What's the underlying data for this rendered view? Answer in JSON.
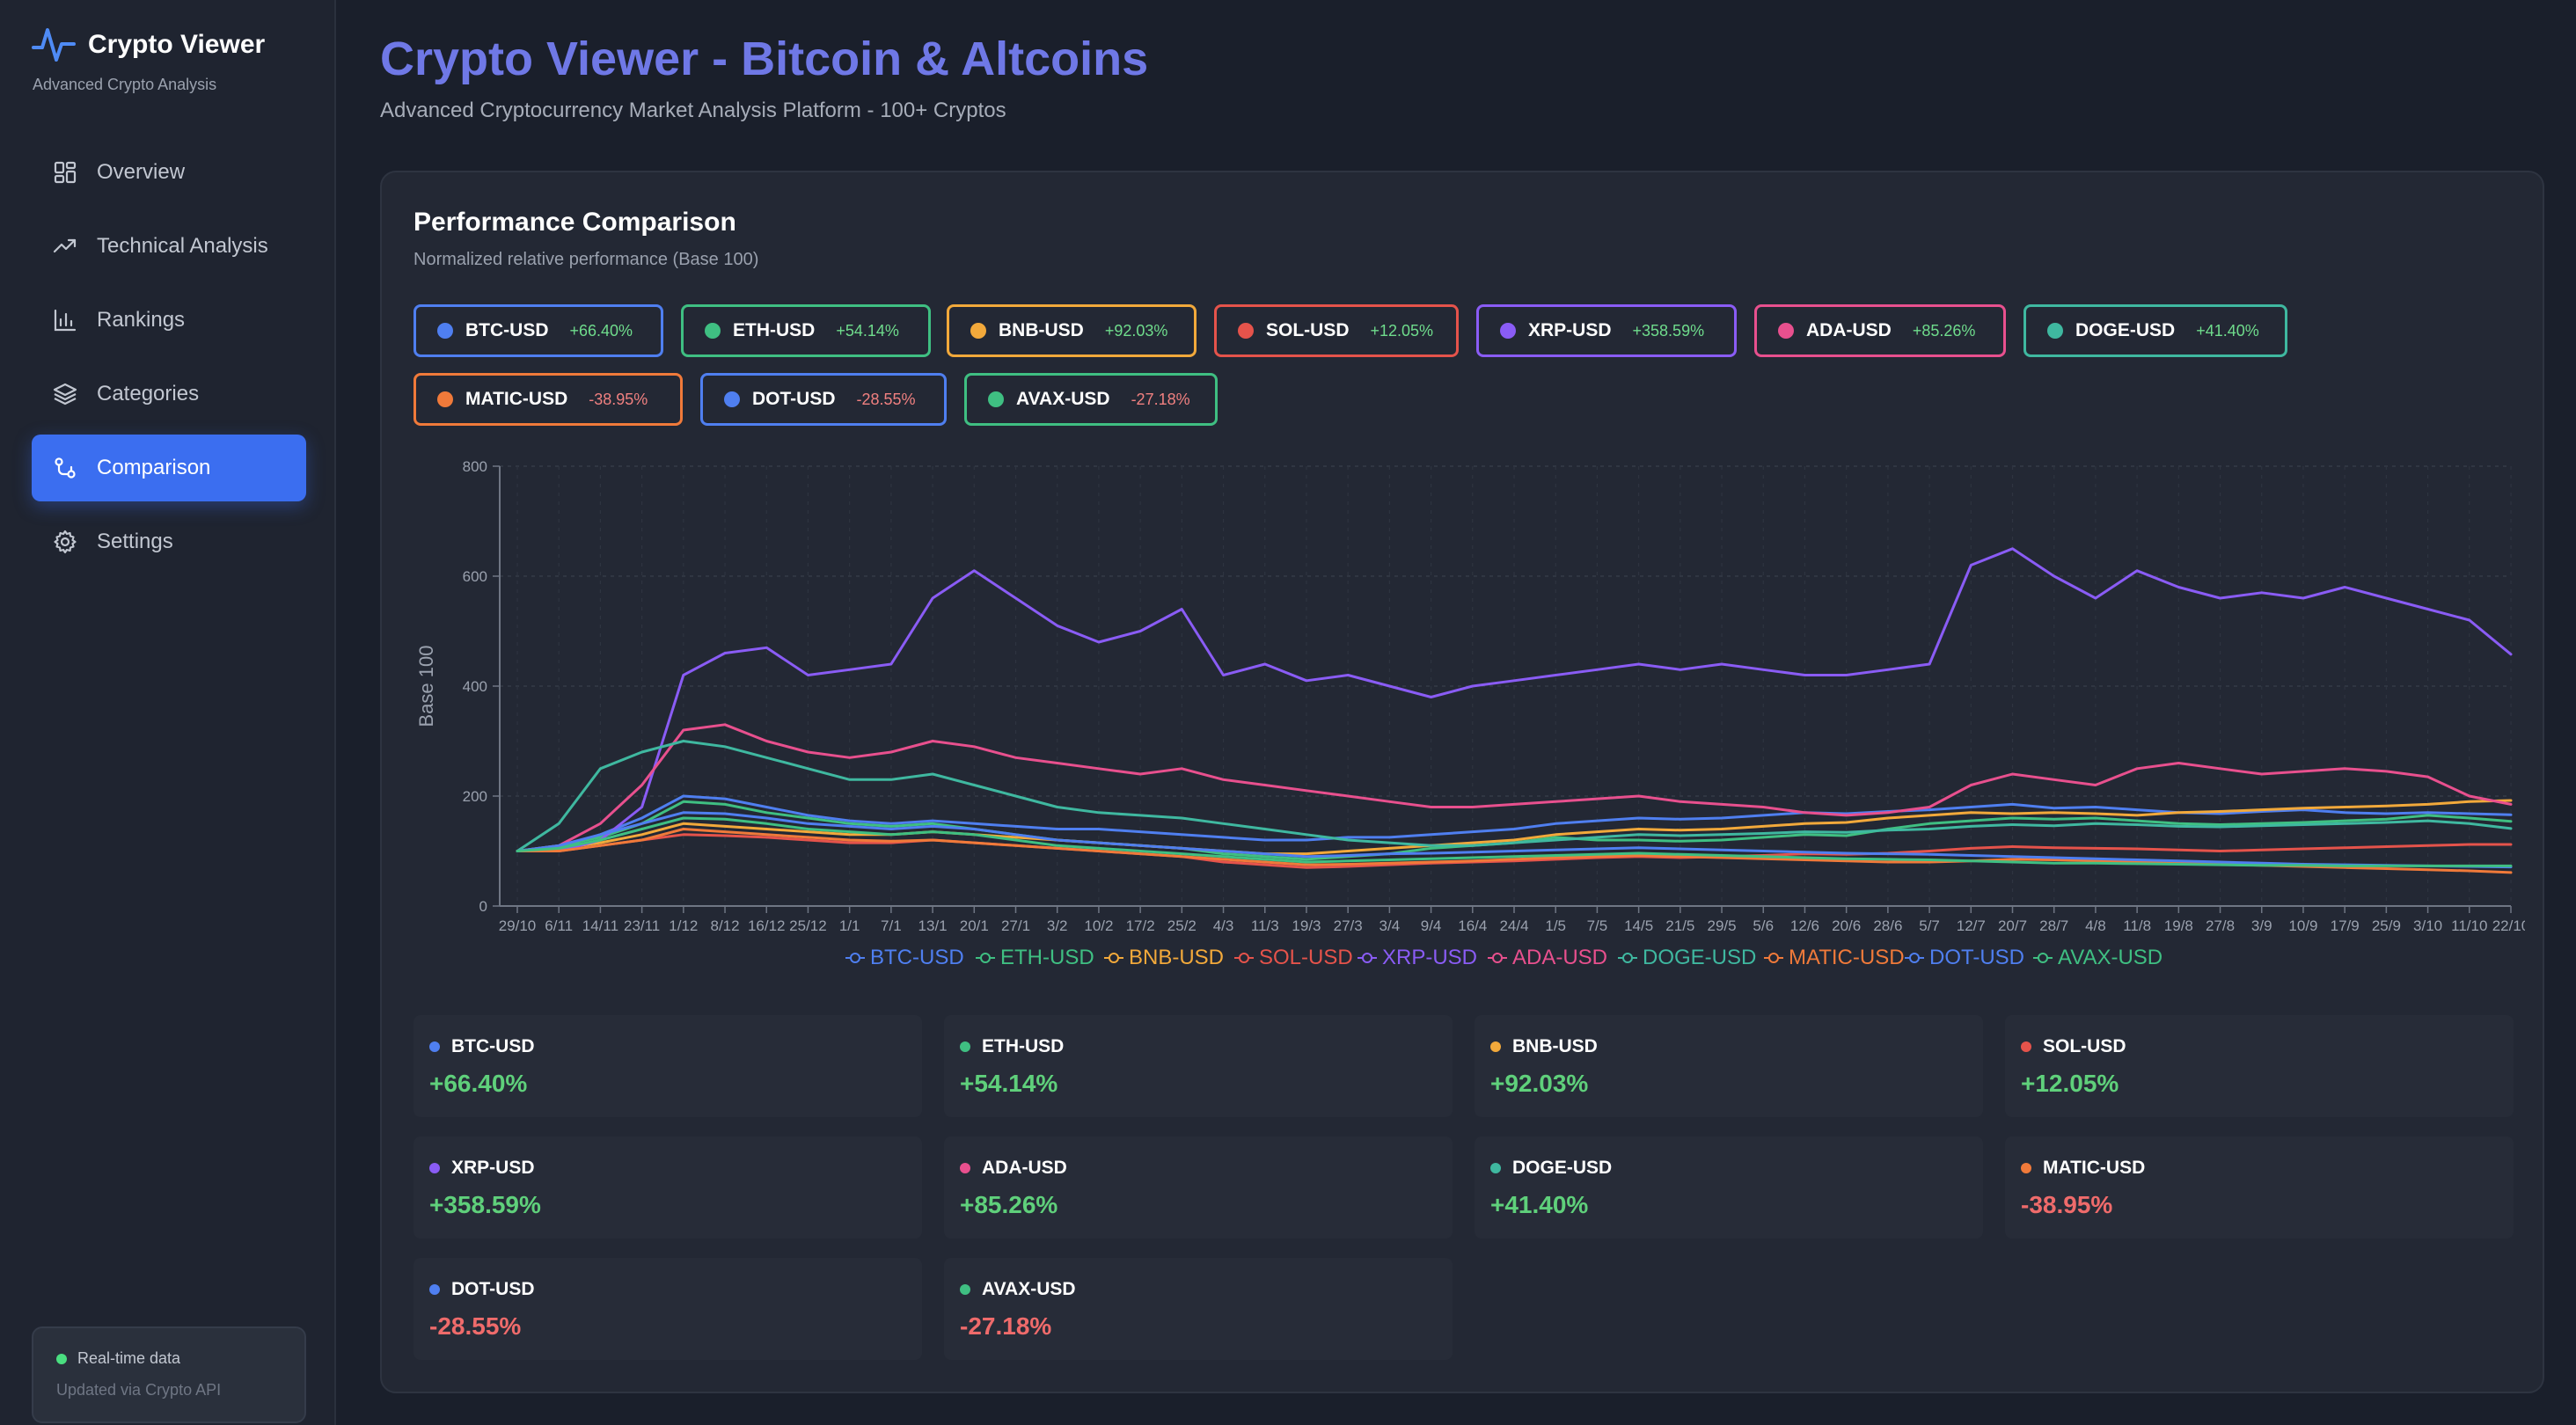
{
  "brand": {
    "title": "Crypto Viewer",
    "subtitle": "Advanced Crypto Analysis"
  },
  "nav": [
    {
      "label": "Overview",
      "icon": "grid-icon",
      "active": false
    },
    {
      "label": "Technical Analysis",
      "icon": "trending-up-icon",
      "active": false
    },
    {
      "label": "Rankings",
      "icon": "bar-chart-icon",
      "active": false
    },
    {
      "label": "Categories",
      "icon": "layers-icon",
      "active": false
    },
    {
      "label": "Comparison",
      "icon": "compare-icon",
      "active": true
    },
    {
      "label": "Settings",
      "icon": "gear-icon",
      "active": false
    }
  ],
  "status": {
    "line1": "Real-time data",
    "line2": "Updated via Crypto API"
  },
  "header": {
    "title": "Crypto Viewer - Bitcoin & Altcoins",
    "subtitle": "Advanced Cryptocurrency Market Analysis Platform - 100+ Cryptos"
  },
  "panel": {
    "title": "Performance Comparison",
    "subtitle": "Normalized relative performance (Base 100)"
  },
  "assets": [
    {
      "name": "BTC-USD",
      "change": "+66.40%",
      "color": "#4f7ff0"
    },
    {
      "name": "ETH-USD",
      "change": "+54.14%",
      "color": "#3fbf82"
    },
    {
      "name": "BNB-USD",
      "change": "+92.03%",
      "color": "#f2a93b"
    },
    {
      "name": "SOL-USD",
      "change": "+12.05%",
      "color": "#e5534b"
    },
    {
      "name": "XRP-USD",
      "change": "+358.59%",
      "color": "#8a5cf5"
    },
    {
      "name": "ADA-USD",
      "change": "+85.26%",
      "color": "#e8508e"
    },
    {
      "name": "DOGE-USD",
      "change": "+41.40%",
      "color": "#3fb8a0"
    },
    {
      "name": "MATIC-USD",
      "change": "-38.95%",
      "color": "#f07a3a"
    },
    {
      "name": "DOT-USD",
      "change": "-28.55%",
      "color": "#4f7ff0"
    },
    {
      "name": "AVAX-USD",
      "change": "-27.18%",
      "color": "#3fbf82"
    }
  ],
  "chart_data": {
    "type": "line",
    "ylabel": "Base 100",
    "ylim": [
      0,
      800
    ],
    "yticks": [
      0,
      200,
      400,
      600,
      800
    ],
    "grid": true,
    "legend_position": "bottom",
    "x": [
      "29/10",
      "6/11",
      "14/11",
      "23/11",
      "1/12",
      "8/12",
      "16/12",
      "25/12",
      "1/1",
      "7/1",
      "13/1",
      "20/1",
      "27/1",
      "3/2",
      "10/2",
      "17/2",
      "25/2",
      "4/3",
      "11/3",
      "19/3",
      "27/3",
      "3/4",
      "9/4",
      "16/4",
      "24/4",
      "1/5",
      "7/5",
      "14/5",
      "21/5",
      "29/5",
      "5/6",
      "12/6",
      "20/6",
      "28/6",
      "5/7",
      "12/7",
      "20/7",
      "28/7",
      "4/8",
      "11/8",
      "19/8",
      "27/8",
      "3/9",
      "10/9",
      "17/9",
      "25/9",
      "3/10",
      "11/10",
      "22/10"
    ],
    "series": [
      {
        "name": "BTC-USD",
        "values": [
          100,
          105,
          130,
          160,
          200,
          195,
          180,
          165,
          155,
          150,
          155,
          150,
          145,
          140,
          140,
          135,
          130,
          125,
          120,
          120,
          125,
          125,
          130,
          135,
          140,
          150,
          155,
          160,
          158,
          160,
          165,
          170,
          168,
          172,
          175,
          180,
          185,
          178,
          180,
          175,
          170,
          168,
          172,
          175,
          170,
          168,
          170,
          168,
          166
        ]
      },
      {
        "name": "ETH-USD",
        "values": [
          100,
          110,
          125,
          150,
          190,
          185,
          170,
          160,
          150,
          145,
          150,
          140,
          130,
          120,
          115,
          110,
          105,
          95,
          90,
          85,
          90,
          95,
          105,
          110,
          115,
          125,
          120,
          120,
          118,
          120,
          125,
          130,
          128,
          140,
          150,
          155,
          160,
          158,
          160,
          155,
          150,
          148,
          150,
          152,
          155,
          158,
          165,
          160,
          154
        ]
      },
      {
        "name": "BNB-USD",
        "values": [
          100,
          105,
          115,
          130,
          150,
          145,
          140,
          135,
          130,
          130,
          135,
          130,
          125,
          120,
          115,
          110,
          105,
          100,
          95,
          95,
          100,
          105,
          110,
          115,
          120,
          130,
          135,
          140,
          138,
          140,
          145,
          150,
          152,
          160,
          165,
          170,
          168,
          170,
          168,
          165,
          170,
          172,
          175,
          178,
          180,
          182,
          185,
          190,
          192
        ]
      },
      {
        "name": "SOL-USD",
        "values": [
          100,
          100,
          110,
          120,
          130,
          128,
          125,
          120,
          115,
          115,
          120,
          115,
          110,
          105,
          100,
          95,
          90,
          80,
          75,
          70,
          72,
          75,
          78,
          80,
          82,
          85,
          88,
          90,
          88,
          90,
          92,
          95,
          94,
          96,
          100,
          105,
          108,
          106,
          105,
          104,
          102,
          100,
          102,
          104,
          106,
          108,
          110,
          112,
          112
        ]
      },
      {
        "name": "XRP-USD",
        "values": [
          100,
          100,
          120,
          180,
          420,
          460,
          470,
          420,
          430,
          440,
          560,
          610,
          560,
          510,
          480,
          500,
          540,
          420,
          440,
          410,
          420,
          400,
          380,
          400,
          410,
          420,
          430,
          440,
          430,
          440,
          430,
          420,
          420,
          430,
          440,
          620,
          650,
          600,
          560,
          610,
          580,
          560,
          570,
          560,
          580,
          560,
          540,
          520,
          458
        ]
      },
      {
        "name": "ADA-USD",
        "values": [
          100,
          110,
          150,
          220,
          320,
          330,
          300,
          280,
          270,
          280,
          300,
          290,
          270,
          260,
          250,
          240,
          250,
          230,
          220,
          210,
          200,
          190,
          180,
          180,
          185,
          190,
          195,
          200,
          190,
          185,
          180,
          170,
          165,
          170,
          180,
          220,
          240,
          230,
          220,
          250,
          260,
          250,
          240,
          245,
          250,
          245,
          235,
          200,
          185
        ]
      },
      {
        "name": "DOGE-USD",
        "values": [
          100,
          150,
          250,
          280,
          300,
          290,
          270,
          250,
          230,
          230,
          240,
          220,
          200,
          180,
          170,
          165,
          160,
          150,
          140,
          130,
          120,
          115,
          110,
          110,
          115,
          120,
          125,
          130,
          128,
          130,
          132,
          135,
          134,
          138,
          140,
          145,
          148,
          146,
          150,
          148,
          145,
          144,
          146,
          148,
          150,
          152,
          155,
          150,
          141
        ]
      },
      {
        "name": "MATIC-USD",
        "values": [
          100,
          100,
          110,
          120,
          140,
          135,
          130,
          125,
          120,
          118,
          120,
          115,
          110,
          105,
          100,
          95,
          90,
          85,
          80,
          75,
          76,
          78,
          80,
          82,
          85,
          88,
          90,
          92,
          90,
          88,
          86,
          84,
          82,
          80,
          80,
          82,
          85,
          84,
          82,
          80,
          78,
          76,
          74,
          72,
          70,
          68,
          66,
          64,
          61
        ]
      },
      {
        "name": "DOT-USD",
        "values": [
          100,
          110,
          130,
          150,
          170,
          168,
          160,
          150,
          145,
          140,
          145,
          140,
          130,
          120,
          115,
          110,
          105,
          100,
          95,
          90,
          92,
          95,
          96,
          98,
          100,
          102,
          104,
          106,
          104,
          102,
          100,
          98,
          96,
          95,
          94,
          92,
          90,
          88,
          86,
          84,
          82,
          80,
          78,
          76,
          75,
          74,
          73,
          72,
          71
        ]
      },
      {
        "name": "AVAX-USD",
        "values": [
          100,
          105,
          120,
          140,
          160,
          158,
          150,
          140,
          135,
          130,
          135,
          130,
          120,
          110,
          105,
          100,
          95,
          90,
          85,
          80,
          82,
          84,
          86,
          88,
          90,
          92,
          94,
          96,
          94,
          92,
          90,
          88,
          86,
          85,
          84,
          82,
          80,
          78,
          78,
          77,
          76,
          75,
          74,
          74,
          73,
          73,
          73,
          73,
          73
        ]
      }
    ]
  }
}
